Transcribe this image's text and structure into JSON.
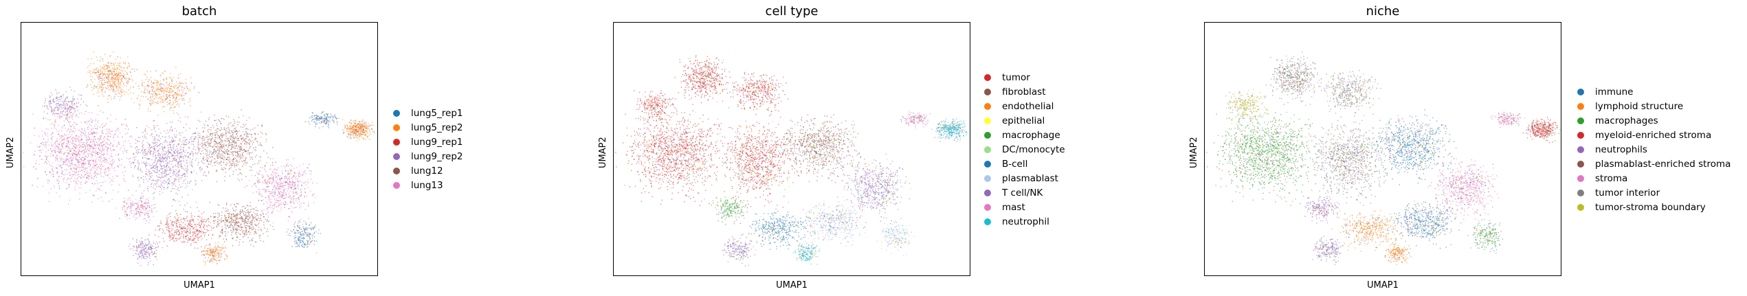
{
  "chart_data": [
    {
      "type": "scatter",
      "title": "batch",
      "xlabel": "UMAP1",
      "ylabel": "UMAP2",
      "grid": false,
      "legend_position": "right",
      "series": [
        {
          "name": "lung5_rep1",
          "color": "#1f77b4"
        },
        {
          "name": "lung5_rep2",
          "color": "#ff7f0e"
        },
        {
          "name": "lung9_rep1",
          "color": "#d62728"
        },
        {
          "name": "lung9_rep2",
          "color": "#9467bd"
        },
        {
          "name": "lung12",
          "color": "#8c564b"
        },
        {
          "name": "lung13",
          "color": "#e377c2"
        }
      ]
    },
    {
      "type": "scatter",
      "title": "cell type",
      "xlabel": "UMAP1",
      "ylabel": "UMAP2",
      "grid": false,
      "legend_position": "right",
      "series": [
        {
          "name": "tumor",
          "color": "#d62728"
        },
        {
          "name": "fibroblast",
          "color": "#8c564b"
        },
        {
          "name": "endothelial",
          "color": "#ff7f0e"
        },
        {
          "name": "epithelial",
          "color": "#ffff33"
        },
        {
          "name": "macrophage",
          "color": "#2ca02c"
        },
        {
          "name": "DC/monocyte",
          "color": "#98df8a"
        },
        {
          "name": "B-cell",
          "color": "#1f77b4"
        },
        {
          "name": "plasmablast",
          "color": "#aec7e8"
        },
        {
          "name": "T cell/NK",
          "color": "#9467bd"
        },
        {
          "name": "mast",
          "color": "#e377c2"
        },
        {
          "name": "neutrophil",
          "color": "#17becf"
        }
      ]
    },
    {
      "type": "scatter",
      "title": "niche",
      "xlabel": "UMAP1",
      "ylabel": "UMAP2",
      "grid": false,
      "legend_position": "right",
      "series": [
        {
          "name": "immune",
          "color": "#1f77b4"
        },
        {
          "name": "lymphoid structure",
          "color": "#ff7f0e"
        },
        {
          "name": "macrophages",
          "color": "#2ca02c"
        },
        {
          "name": "myeloid-enriched stroma",
          "color": "#d62728"
        },
        {
          "name": "neutrophils",
          "color": "#9467bd"
        },
        {
          "name": "plasmablast-enriched stroma",
          "color": "#8c564b"
        },
        {
          "name": "stroma",
          "color": "#e377c2"
        },
        {
          "name": "tumor interior",
          "color": "#7f7f7f"
        },
        {
          "name": "tumor-stroma boundary",
          "color": "#bcbd22"
        }
      ]
    }
  ]
}
